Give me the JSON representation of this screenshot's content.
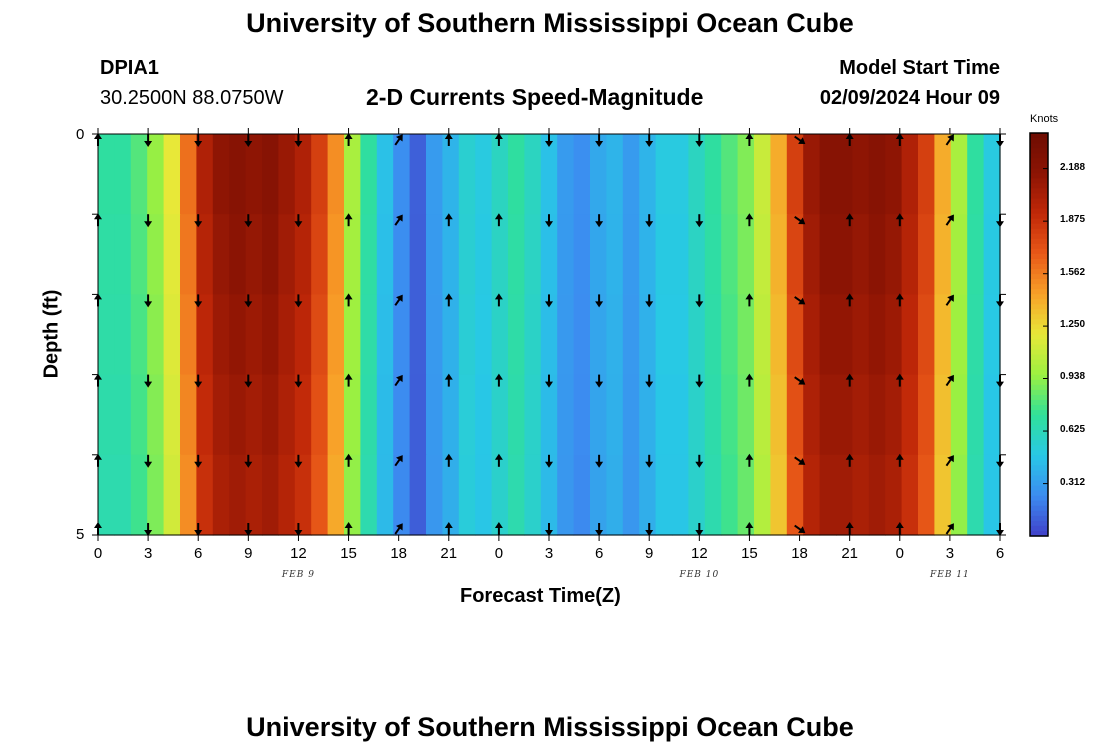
{
  "header": {
    "title": "University of Southern Mississippi Ocean Cube",
    "station_id": "DPIA1",
    "coords": "30.2500N  88.0750W",
    "plot_title": "2-D Currents Speed-Magnitude",
    "model_start_label": "Model Start Time",
    "model_start_value": "02/09/2024 Hour 09"
  },
  "footer": {
    "title": "University of Southern Mississippi Ocean Cube"
  },
  "colors": {
    "scale": [
      "#4040c8",
      "#3c8cf0",
      "#28c8e6",
      "#30e09a",
      "#9cf040",
      "#e8e838",
      "#f8a028",
      "#e85818",
      "#c02808",
      "#8c1404",
      "#6e0c02"
    ],
    "arrow": "#000000"
  },
  "chart_data": {
    "type": "heatmap",
    "title": "2-D Currents Speed-Magnitude",
    "xlabel": "Forecast Time(Z)",
    "ylabel": "Depth (ft)",
    "x_tick_labels": [
      "0",
      "3",
      "6",
      "9",
      "12",
      "15",
      "18",
      "21",
      "0",
      "3",
      "6",
      "9",
      "12",
      "15",
      "18",
      "21",
      "0",
      "3",
      "6"
    ],
    "x_range_hours": [
      0,
      54
    ],
    "date_labels": [
      {
        "text": "FEB 9",
        "hour": 12
      },
      {
        "text": "FEB 10",
        "hour": 36
      },
      {
        "text": "FEB 11",
        "hour": 51
      }
    ],
    "y_tick_labels": [
      "0",
      "5"
    ],
    "ylim": [
      0,
      5
    ],
    "depth_rows": 5,
    "colorbar": {
      "unit": "Knots",
      "range": [
        0,
        2.4
      ],
      "ticks": [
        "2.188",
        "1.875",
        "1.562",
        "1.250",
        "0.938",
        "0.625",
        "0.312"
      ],
      "tick_values": [
        2.188,
        1.875,
        1.562,
        1.25,
        0.938,
        0.625,
        0.312
      ]
    },
    "speed_knots_by_hour": [
      0.7,
      0.7,
      0.8,
      0.95,
      1.2,
      1.6,
      2.0,
      2.15,
      2.2,
      2.15,
      2.2,
      2.1,
      2.0,
      1.8,
      1.5,
      1.0,
      0.7,
      0.45,
      0.25,
      0.1,
      0.3,
      0.4,
      0.55,
      0.5,
      0.6,
      0.7,
      0.6,
      0.45,
      0.3,
      0.25,
      0.35,
      0.4,
      0.3,
      0.4,
      0.5,
      0.5,
      0.6,
      0.7,
      0.8,
      0.9,
      1.1,
      1.4,
      1.8,
      2.1,
      2.2,
      2.2,
      2.15,
      2.2,
      2.15,
      2.0,
      1.8,
      1.4,
      1.0,
      0.7,
      0.5
    ],
    "arrows": [
      {
        "hour": 0,
        "dir": "up"
      },
      {
        "hour": 3,
        "dir": "down"
      },
      {
        "hour": 6,
        "dir": "down"
      },
      {
        "hour": 9,
        "dir": "down"
      },
      {
        "hour": 12,
        "dir": "down"
      },
      {
        "hour": 15,
        "dir": "up"
      },
      {
        "hour": 18,
        "dir": "up-right"
      },
      {
        "hour": 21,
        "dir": "up"
      },
      {
        "hour": 24,
        "dir": "up"
      },
      {
        "hour": 27,
        "dir": "down"
      },
      {
        "hour": 30,
        "dir": "down"
      },
      {
        "hour": 33,
        "dir": "down"
      },
      {
        "hour": 36,
        "dir": "down"
      },
      {
        "hour": 39,
        "dir": "up"
      },
      {
        "hour": 42,
        "dir": "down-right"
      },
      {
        "hour": 45,
        "dir": "up"
      },
      {
        "hour": 48,
        "dir": "up"
      },
      {
        "hour": 51,
        "dir": "up-right"
      },
      {
        "hour": 54,
        "dir": "down"
      }
    ]
  }
}
